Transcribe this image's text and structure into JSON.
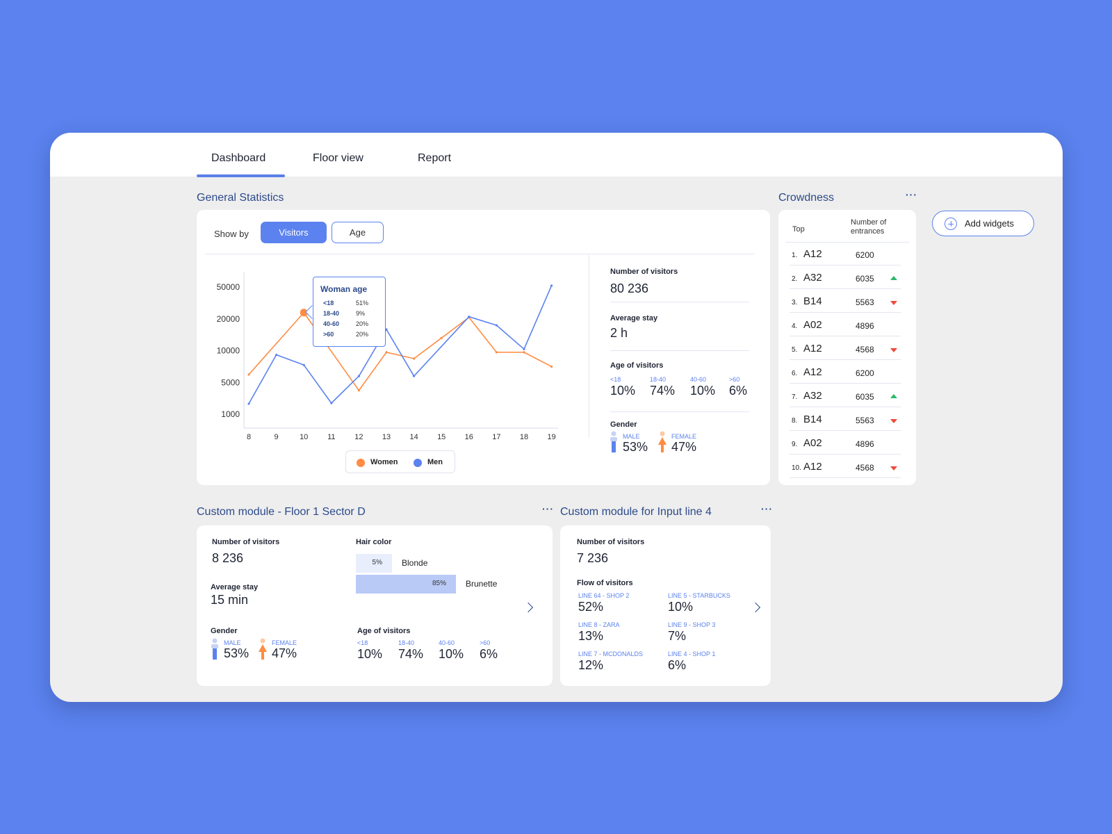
{
  "tabs": [
    {
      "label": "Dashboard",
      "active": true
    },
    {
      "label": "Floor view",
      "active": false
    },
    {
      "label": "Report",
      "active": false
    }
  ],
  "general": {
    "title": "General Statistics",
    "show_by_label": "Show by",
    "toggle": [
      "Visitors",
      "Age"
    ],
    "tooltip": {
      "title": "Woman age",
      "rows": [
        {
          "k": "<18",
          "v": "51%"
        },
        {
          "k": "18-40",
          "v": "9%"
        },
        {
          "k": "40-60",
          "v": "20%"
        },
        {
          "k": ">60",
          "v": "20%"
        }
      ]
    },
    "legend": [
      "Women",
      "Men"
    ],
    "stats": {
      "visitors_label": "Number of visitors",
      "visitors_value": "80 236",
      "stay_label": "Average stay",
      "stay_value": "2 h",
      "age_label": "Age of visitors",
      "age": [
        {
          "cat": "<18",
          "val": "10%"
        },
        {
          "cat": "18-40",
          "val": "74%"
        },
        {
          "cat": "40-60",
          "val": "10%"
        },
        {
          "cat": ">60",
          "val": "6%"
        }
      ],
      "gender_label": "Gender",
      "male_label": "MALE",
      "male_value": "53%",
      "female_label": "FEMALE",
      "female_value": "47%"
    }
  },
  "chart_data": {
    "type": "line",
    "x": [
      8,
      9,
      10,
      11,
      12,
      13,
      14,
      15,
      16,
      17,
      18,
      19
    ],
    "y_ticks": [
      "50000",
      "20000",
      "10000",
      "5000",
      "1000"
    ],
    "y_scale": "categorical-rank (tick labels 1000, 5000, 10000, 20000, 50000 evenly spaced)",
    "series": [
      {
        "name": "Women",
        "color": "#ff8c42",
        "values_rank": [
          1.25,
          null,
          3.2,
          null,
          0.75,
          1.95,
          1.75,
          2.4,
          3.05,
          1.95,
          1.95,
          1.5
        ]
      },
      {
        "name": "Men",
        "color": "#5b82ee",
        "values_rank": [
          0.33,
          1.87,
          1.55,
          0.35,
          1.2,
          2.67,
          1.2,
          null,
          3.07,
          2.8,
          2.05,
          4.05
        ]
      }
    ],
    "highlight": {
      "series": "Women",
      "x": 10
    }
  },
  "crowdness": {
    "title": "Crowdness",
    "col_top": "Top",
    "col_entrances": "Number of entrances",
    "rows": [
      {
        "rank": "1.",
        "name": "A12",
        "num": "6200",
        "trend": ""
      },
      {
        "rank": "2.",
        "name": "A32",
        "num": "6035",
        "trend": "up"
      },
      {
        "rank": "3.",
        "name": "B14",
        "num": "5563",
        "trend": "down"
      },
      {
        "rank": "4.",
        "name": "A02",
        "num": "4896",
        "trend": ""
      },
      {
        "rank": "5.",
        "name": "A12",
        "num": "4568",
        "trend": "down"
      },
      {
        "rank": "6.",
        "name": "A12",
        "num": "6200",
        "trend": ""
      },
      {
        "rank": "7.",
        "name": "A32",
        "num": "6035",
        "trend": "up"
      },
      {
        "rank": "8.",
        "name": "B14",
        "num": "5563",
        "trend": "down"
      },
      {
        "rank": "9.",
        "name": "A02",
        "num": "4896",
        "trend": ""
      },
      {
        "rank": "10.",
        "name": "A12",
        "num": "4568",
        "trend": "down"
      }
    ]
  },
  "add_widgets_label": "Add widgets",
  "module1": {
    "title": "Custom module - Floor 1 Sector D",
    "visitors_label": "Number of visitors",
    "visitors_value": "8 236",
    "stay_label": "Average stay",
    "stay_value": "15 min",
    "gender_label": "Gender",
    "male_label": "MALE",
    "male_value": "53%",
    "female_label": "FEMALE",
    "female_value": "47%",
    "hair_label": "Hair color",
    "hair": [
      {
        "pct": "5%",
        "name": "Blonde",
        "fraction": 0.05
      },
      {
        "pct": "85%",
        "name": "Brunette",
        "fraction": 0.85
      }
    ],
    "age_label": "Age of visitors",
    "age": [
      {
        "cat": "<18",
        "val": "10%"
      },
      {
        "cat": "18-40",
        "val": "74%"
      },
      {
        "cat": "40-60",
        "val": "10%"
      },
      {
        "cat": ">60",
        "val": "6%"
      }
    ]
  },
  "module2": {
    "title": "Custom module for Input line 4",
    "visitors_label": "Number of visitors",
    "visitors_value": "7 236",
    "flow_label": "Flow of visitors",
    "flows": [
      {
        "cat": "LINE 64 - SHOP 2",
        "val": "52%"
      },
      {
        "cat": "LINE 5 - STARBUCKS",
        "val": "10%"
      },
      {
        "cat": "LINE 8 - ZARA",
        "val": "13%"
      },
      {
        "cat": "LINE 9 - SHOP 3",
        "val": "7%"
      },
      {
        "cat": "LINE 7 - MCDONALDS",
        "val": "12%"
      },
      {
        "cat": "LINE 4 - SHOP 1",
        "val": "6%"
      }
    ]
  },
  "colors": {
    "accent": "#5b82ee",
    "women": "#ff8c42",
    "up": "#2cb86a",
    "down": "#ee4a3c",
    "title": "#2c4a8a"
  }
}
